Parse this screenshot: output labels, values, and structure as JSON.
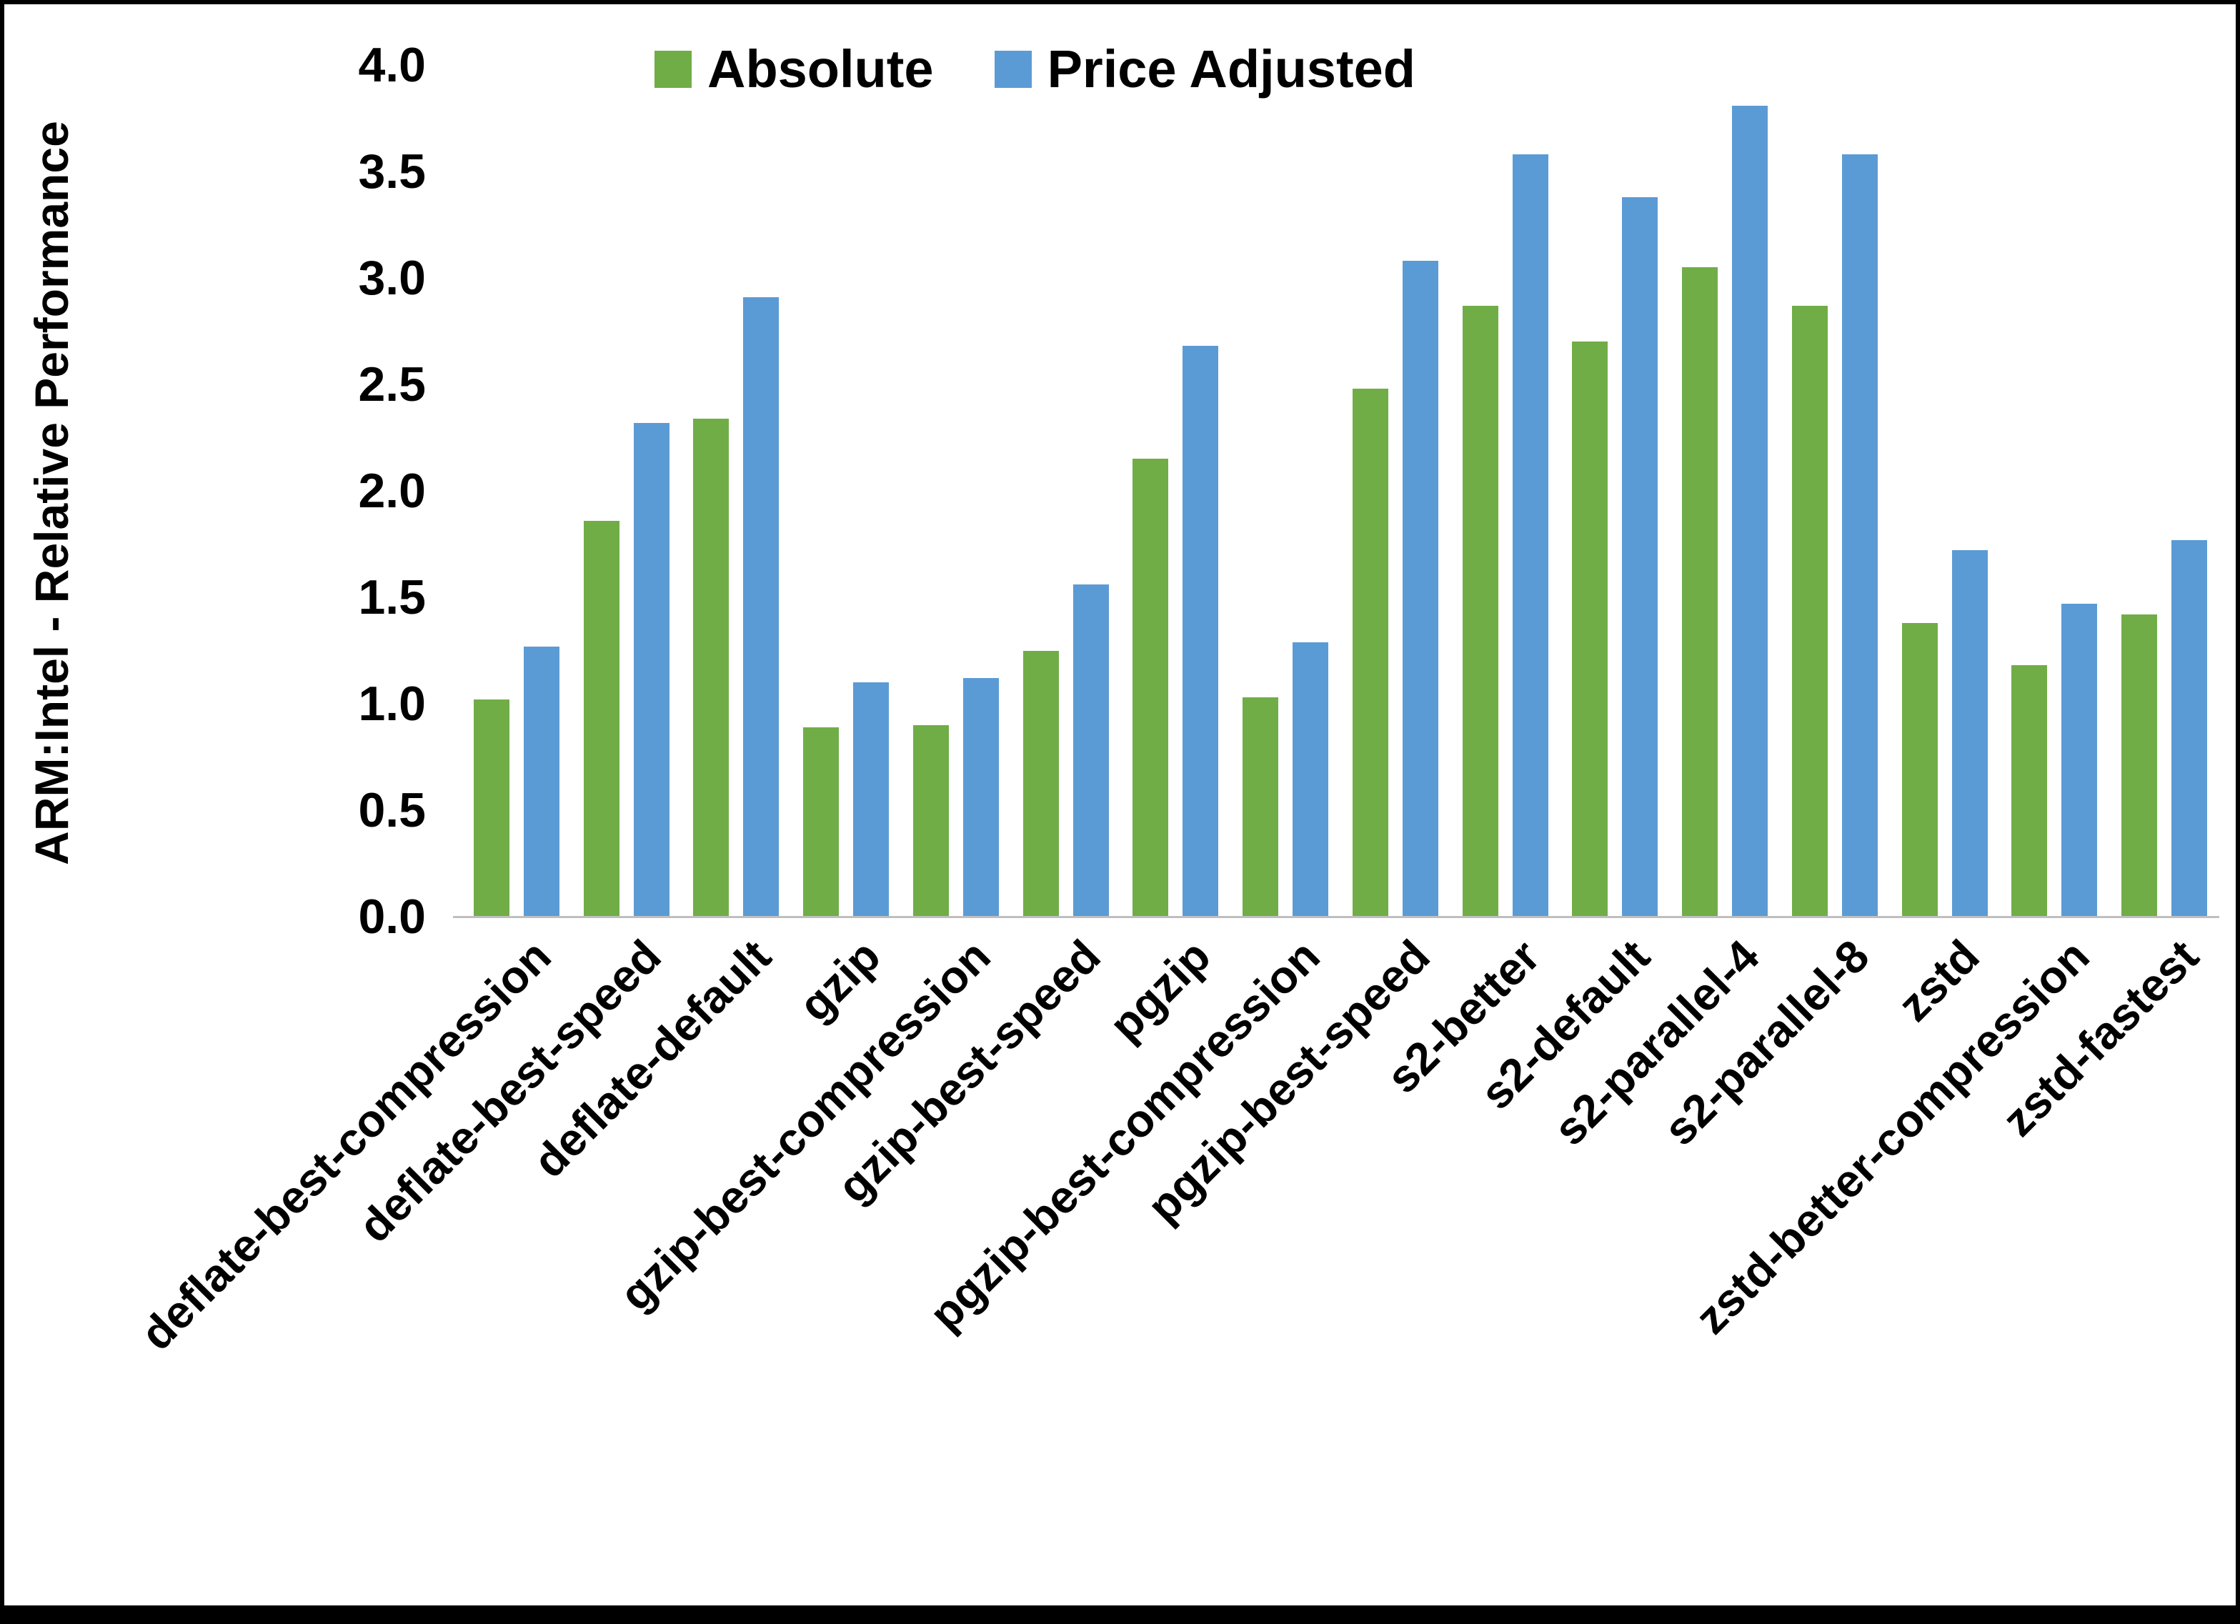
{
  "chart_data": {
    "type": "bar",
    "title": "",
    "xlabel": "",
    "ylabel": "ARM:Intel - Relative Performance",
    "ylim": [
      0.0,
      4.0
    ],
    "ytick_step": 0.5,
    "ytick_format_decimals": 1,
    "grid": false,
    "legend_position": "top-center",
    "categories": [
      "deflate-best-compression",
      "deflate-best-speed",
      "deflate-default",
      "gzip",
      "gzip-best-compression",
      "gzip-best-speed",
      "pgzip",
      "pgzip-best-compression",
      "pgzip-best-speed",
      "s2-better",
      "s2-default",
      "s2-parallel-4",
      "s2-parallel-8",
      "zstd",
      "zstd-better-compression",
      "zstd-fastest"
    ],
    "series": [
      {
        "name": "Absolute",
        "color": "#70AD47",
        "values": [
          1.02,
          1.86,
          2.34,
          0.89,
          0.9,
          1.25,
          2.15,
          1.03,
          2.48,
          2.87,
          2.7,
          3.05,
          2.87,
          1.38,
          1.18,
          1.42
        ]
      },
      {
        "name": "Price Adjusted",
        "color": "#5B9BD5",
        "values": [
          1.27,
          2.32,
          2.91,
          1.1,
          1.12,
          1.56,
          2.68,
          1.29,
          3.08,
          3.58,
          3.38,
          3.81,
          3.58,
          1.72,
          1.47,
          1.77
        ]
      }
    ]
  },
  "colors": {
    "background": "#FFFFFF",
    "frame_border": "#000000",
    "axis_line": "#BFBFBF",
    "text": "#000000",
    "series_absolute": "#70AD47",
    "series_price_adjusted": "#5B9BD5"
  }
}
